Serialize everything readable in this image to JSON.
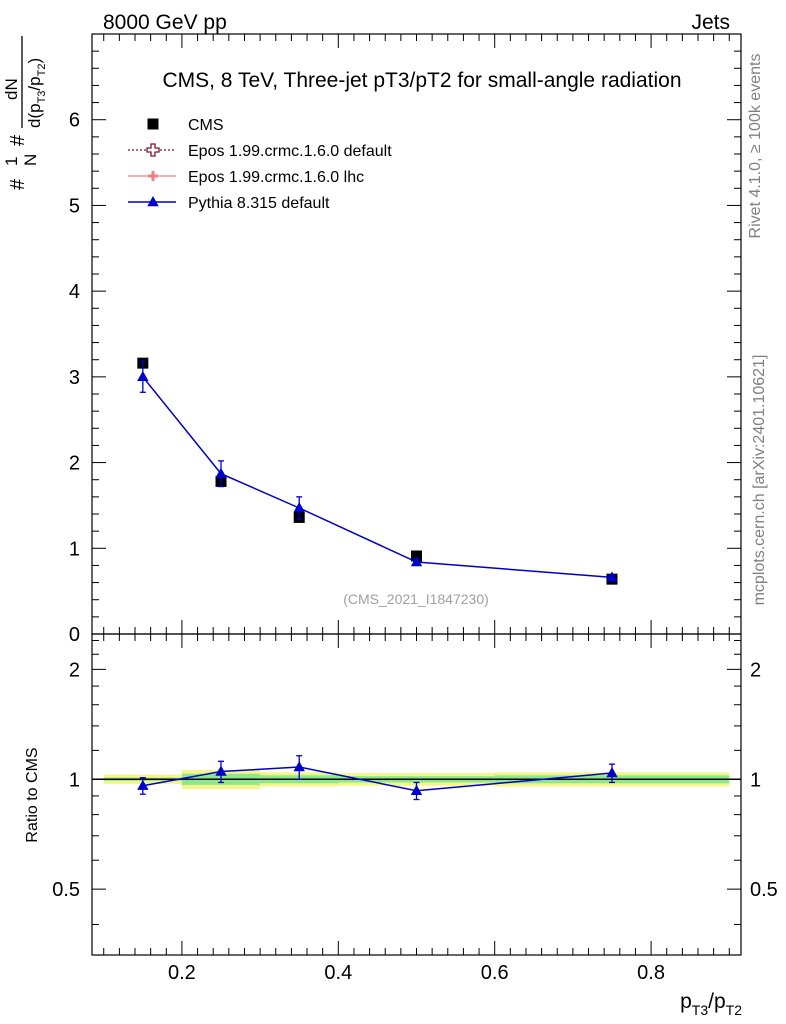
{
  "header": {
    "left": "8000 GeV pp",
    "right": "Jets"
  },
  "side_labels": {
    "rivet": "Rivet 4.1.0, ≥ 100k events",
    "mcplots": "mcplots.cern.ch [arXiv:2401.10621]"
  },
  "ylabel_main": {
    "a": "#",
    "b": "1",
    "c": "N",
    "d": "#",
    "e": "dN",
    "f": "d(p",
    "g": "T3",
    "h": "/p",
    "i": "T2",
    "j": ")"
  },
  "ylabel_ratio": "Ratio to CMS",
  "xlabel": {
    "p1": "p",
    "s1": "T3",
    "p2": "/p",
    "s2": "T2"
  },
  "colors": {
    "cms": "#000000",
    "epos_default": "#7b1530",
    "epos_lhc": "#f08080",
    "pythia": "#0000cc",
    "band_outer": "#f4f58a",
    "band_inner": "#8de88d"
  },
  "chart_data": {
    "type": "line",
    "title": "CMS, 8 TeV, Three-jet pT3/pT2 for small-angle radiation",
    "watermark": "(CMS_2021_I1847230)",
    "xlim": [
      0.085,
      0.915
    ],
    "main_ylim": [
      0,
      7
    ],
    "ratio_ylim": [
      0.33,
      2.5
    ],
    "main_yticks": [
      0,
      1,
      2,
      3,
      4,
      5,
      6
    ],
    "ratio_yticks": [
      0.5,
      1,
      2
    ],
    "ratio_ytick_labels": [
      "0.5",
      "1",
      "2"
    ],
    "xticks": [
      0.2,
      0.4,
      0.6,
      0.8
    ],
    "xtick_labels": [
      "0.2",
      "0.4",
      "0.6",
      "0.8"
    ],
    "legend_position": "top-left",
    "legend": [
      {
        "name": "CMS",
        "marker": "square"
      },
      {
        "name": "Epos 1.99.crmc.1.6.0 default",
        "marker": "open-cross"
      },
      {
        "name": "Epos 1.99.crmc.1.6.0 lhc",
        "marker": "cross"
      },
      {
        "name": "Pythia 8.315 default",
        "marker": "triangle"
      }
    ],
    "bins": [
      {
        "xlo": 0.1,
        "xhi": 0.2,
        "x": 0.15,
        "cms": 3.16,
        "pythia": 3.0,
        "pythia_err": 0.18,
        "ratio": 0.96,
        "ratio_err": 0.05,
        "band_outer": 0.03,
        "band_inner": 0.01
      },
      {
        "xlo": 0.2,
        "xhi": 0.3,
        "x": 0.25,
        "cms": 1.78,
        "pythia": 1.87,
        "pythia_err": 0.15,
        "ratio": 1.05,
        "ratio_err": 0.07,
        "band_outer": 0.06,
        "band_inner": 0.035
      },
      {
        "xlo": 0.3,
        "xhi": 0.4,
        "x": 0.35,
        "cms": 1.36,
        "pythia": 1.47,
        "pythia_err": 0.13,
        "ratio": 1.08,
        "ratio_err": 0.08,
        "band_outer": 0.045,
        "band_inner": 0.025
      },
      {
        "xlo": 0.4,
        "xhi": 0.6,
        "x": 0.5,
        "cms": 0.91,
        "pythia": 0.84,
        "pythia_err": 0.04,
        "ratio": 0.93,
        "ratio_err": 0.05,
        "band_outer": 0.04,
        "band_inner": 0.02
      },
      {
        "xlo": 0.6,
        "xhi": 0.9,
        "x": 0.75,
        "cms": 0.64,
        "pythia": 0.66,
        "pythia_err": 0.03,
        "ratio": 1.04,
        "ratio_err": 0.06,
        "band_outer": 0.045,
        "band_inner": 0.025
      }
    ]
  }
}
